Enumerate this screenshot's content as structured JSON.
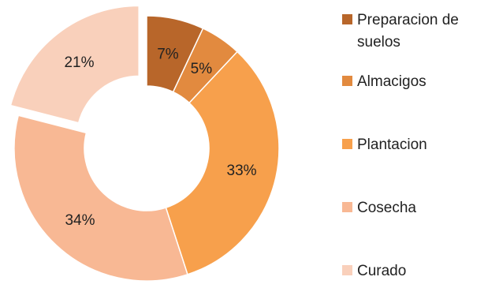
{
  "chart_data": {
    "type": "pie",
    "subtype": "donut",
    "categories": [
      "Preparacion de suelos",
      "Almacigos",
      "Plantacion",
      "Cosecha",
      "Curado"
    ],
    "values": [
      7,
      5,
      33,
      34,
      21
    ],
    "data_labels": [
      "7%",
      "5%",
      "33%",
      "34%",
      "21%"
    ],
    "colors": [
      "#b8662a",
      "#e28a3f",
      "#f7a04c",
      "#f8b894",
      "#f9d0bb"
    ],
    "exploded": [
      "Curado"
    ],
    "legend_position": "right"
  }
}
